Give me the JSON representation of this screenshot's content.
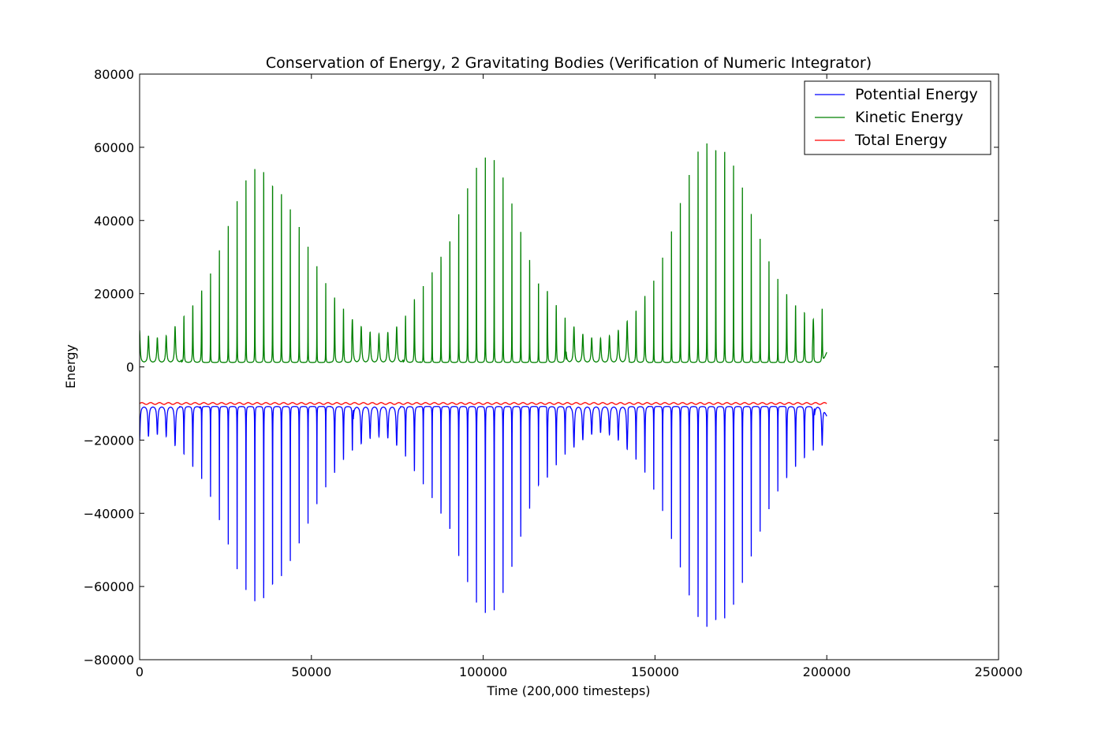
{
  "chart_data": {
    "type": "line",
    "title": "Conservation of Energy, 2 Gravitating Bodies (Verification of Numeric Integrator)",
    "xlabel": "Time (200,000 timesteps)",
    "ylabel": "Energy",
    "xlim": [
      0,
      250000
    ],
    "ylim": [
      -80000,
      80000
    ],
    "x_ticks": [
      0,
      50000,
      100000,
      150000,
      200000,
      250000
    ],
    "x_tick_labels": [
      "0",
      "50000",
      "100000",
      "150000",
      "200000",
      "250000"
    ],
    "y_ticks": [
      80000,
      60000,
      40000,
      20000,
      0,
      -20000,
      -40000,
      -60000,
      -80000
    ],
    "y_tick_labels": [
      "80000",
      "60000",
      "40000",
      "20000",
      "0",
      "−20000",
      "−40000",
      "−60000",
      "−80000"
    ],
    "grid": false,
    "legend_position": "top-right",
    "x_range_of_data": [
      0,
      200000
    ],
    "series": [
      {
        "name": "Potential Energy",
        "color": "#0000ff",
        "peak_x": [
          0,
          2580,
          5160,
          7740,
          10320,
          12900,
          15480,
          18060,
          20640,
          23220,
          25800,
          28380,
          30960,
          33540,
          36120,
          38700,
          41280,
          43860,
          46440,
          49020,
          51600,
          54180,
          56760,
          59340,
          61920,
          64500,
          67080,
          69660,
          72240,
          74820,
          77400,
          79980,
          82560,
          85140,
          87720,
          90300,
          92880,
          95460,
          98040,
          100620,
          103200,
          105780,
          108360,
          110940,
          113520,
          116100,
          118680,
          121260,
          123840,
          126420,
          129000,
          131580,
          134160,
          136740,
          139320,
          141900,
          144480,
          147060,
          149640,
          152220,
          154800,
          157380,
          159960,
          162540,
          165120,
          167700,
          170280,
          172860,
          175440,
          178020,
          180600,
          183180,
          185760,
          188340,
          190920,
          193500,
          196080,
          198660
        ],
        "peak_y": [
          -20000,
          -19000,
          -18500,
          -19000,
          -21500,
          -24000,
          -27500,
          -31500,
          -36000,
          -42000,
          -48500,
          -55500,
          -62000,
          -66500,
          -67500,
          -65500,
          -61000,
          -55000,
          -49000,
          -43000,
          -37500,
          -33000,
          -29000,
          -25500,
          -23000,
          -21000,
          -19500,
          -19000,
          -19500,
          -21500,
          -24500,
          -28500,
          -32500,
          -37000,
          -42500,
          -48500,
          -55000,
          -61000,
          -65500,
          -67500,
          -66500,
          -62000,
          -55500,
          -48000,
          -41000,
          -35000,
          -30500,
          -27000,
          -24000,
          -22000,
          -20000,
          -18500,
          -18000,
          -18500,
          -20000,
          -22500,
          -25500,
          -29000,
          -34000,
          -39500,
          -47000,
          -55000,
          -63500,
          -71000,
          -76000,
          -76500,
          -73500,
          -67500,
          -60000,
          -52000,
          -45000,
          -39000,
          -34500,
          -30500,
          -27500,
          -25000,
          -23000,
          -21500
        ],
        "baseline_y": -10800,
        "end_y": -13500
      },
      {
        "name": "Kinetic Energy",
        "color": "#008000",
        "peak_x": [
          0,
          2580,
          5160,
          7740,
          10320,
          12900,
          15480,
          18060,
          20640,
          23220,
          25800,
          28380,
          30960,
          33540,
          36120,
          38700,
          41280,
          43860,
          46440,
          49020,
          51600,
          54180,
          56760,
          59340,
          61920,
          64500,
          67080,
          69660,
          72240,
          74820,
          77400,
          79980,
          82560,
          85140,
          87720,
          90300,
          92880,
          95460,
          98040,
          100620,
          103200,
          105780,
          108360,
          110940,
          113520,
          116100,
          118680,
          121260,
          123840,
          126420,
          129000,
          131580,
          134160,
          136740,
          139320,
          141900,
          144480,
          147060,
          149640,
          152220,
          154800,
          157380,
          159960,
          162540,
          165120,
          167700,
          170280,
          172860,
          175440,
          178020,
          180600,
          183180,
          185760,
          188340,
          190920,
          193500,
          196080,
          198660
        ],
        "peak_y": [
          10000,
          8500,
          8000,
          8500,
          11000,
          14000,
          17000,
          21000,
          26000,
          32000,
          38500,
          45500,
          52000,
          56500,
          57500,
          55500,
          51000,
          45000,
          39000,
          33000,
          27500,
          23000,
          19000,
          16000,
          13000,
          11000,
          9500,
          9000,
          9500,
          11000,
          14000,
          18500,
          22500,
          27000,
          32500,
          38500,
          45000,
          51000,
          55500,
          57500,
          56500,
          52000,
          45500,
          38500,
          31500,
          25500,
          21000,
          17000,
          13500,
          11000,
          9000,
          8000,
          7800,
          8500,
          10000,
          12500,
          15500,
          19500,
          24000,
          30000,
          37000,
          45000,
          53500,
          61500,
          66000,
          66500,
          63500,
          57500,
          50000,
          42000,
          35000,
          29000,
          24500,
          20000,
          17000,
          15000,
          13000,
          16000
        ],
        "baseline_y": 1200,
        "end_y": 4000
      },
      {
        "name": "Total Energy",
        "color": "#ff0000",
        "mean_y": -10000,
        "ripple_amplitude": 250
      }
    ]
  }
}
